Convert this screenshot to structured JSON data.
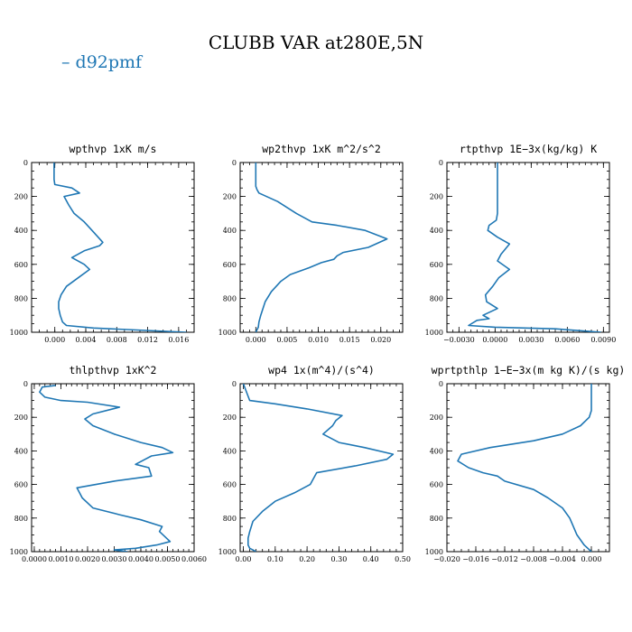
{
  "figure": {
    "title": "CLUBB VAR at280E,5N",
    "legend": [
      {
        "label": "– d92pmf",
        "color": "#1f77b4"
      }
    ],
    "line_color": "#1f77b4"
  },
  "chart_data": [
    {
      "type": "line",
      "title": "wpthvp  1xK m/s",
      "xlim": [
        -0.003,
        0.018
      ],
      "ylim": [
        1000,
        0
      ],
      "xticks": [
        0.0,
        0.004,
        0.008,
        0.012,
        0.016
      ],
      "xtick_labels": [
        "0.000",
        "0.004",
        "0.008",
        "0.012",
        "0.016"
      ],
      "xminor_step": 0.001,
      "yticks": [
        0,
        200,
        400,
        600,
        800,
        1000
      ],
      "ytick_labels": [
        "0",
        "200",
        "400",
        "600",
        "800",
        "1000"
      ],
      "series": [
        {
          "x": [
            -0.0001,
            -0.0001,
            -0.0001,
            0.0,
            0.0022,
            0.0032,
            0.0012,
            0.0018,
            0.0025,
            0.0038,
            0.0048,
            0.0062,
            0.0058,
            0.0038,
            0.0022,
            0.0038,
            0.0045,
            0.003,
            0.0015,
            0.0008,
            0.0005,
            0.0005,
            0.0007,
            0.001,
            0.0015,
            0.005,
            0.017
          ],
          "y": [
            0,
            50,
            100,
            130,
            150,
            180,
            200,
            250,
            300,
            350,
            400,
            470,
            490,
            520,
            560,
            600,
            630,
            680,
            730,
            780,
            820,
            860,
            900,
            940,
            960,
            975,
            1000
          ]
        }
      ]
    },
    {
      "type": "line",
      "title": "wp2thvp  1xK m^2/s^2",
      "xlim": [
        -0.0025,
        0.0235
      ],
      "ylim": [
        1000,
        0
      ],
      "xticks": [
        0.0,
        0.005,
        0.01,
        0.015,
        0.02
      ],
      "xtick_labels": [
        "0.000",
        "0.005",
        "0.010",
        "0.015",
        "0.020"
      ],
      "xminor_step": 0.001,
      "yticks": [
        0,
        200,
        400,
        600,
        800,
        1000
      ],
      "ytick_labels": [
        "0",
        "200",
        "400",
        "600",
        "800",
        "1000"
      ],
      "series": [
        {
          "x": [
            0.0,
            0.0,
            0.0,
            0.0,
            0.0002,
            0.0005,
            0.0035,
            0.0065,
            0.009,
            0.013,
            0.0175,
            0.021,
            0.018,
            0.014,
            0.013,
            0.0125,
            0.0105,
            0.0085,
            0.0055,
            0.004,
            0.0035,
            0.0025,
            0.0015,
            0.0008,
            0.0005,
            0.0004,
            0.0
          ],
          "y": [
            0,
            50,
            100,
            140,
            160,
            180,
            230,
            300,
            350,
            370,
            400,
            450,
            500,
            530,
            550,
            570,
            590,
            620,
            660,
            700,
            720,
            760,
            820,
            900,
            940,
            970,
            1000
          ]
        }
      ]
    },
    {
      "type": "line",
      "title": "rtpthvp  1E−3x(kg/kg) K",
      "xlim": [
        -0.004,
        0.0095
      ],
      "ylim": [
        1000,
        0
      ],
      "xticks": [
        -0.003,
        0.0,
        0.003,
        0.006,
        0.009
      ],
      "xtick_labels": [
        "−0.0030",
        "0.0000",
        "0.0030",
        "0.0060",
        "0.0090"
      ],
      "xminor_step": 0.0005,
      "yticks": [
        0,
        200,
        400,
        600,
        800,
        1000
      ],
      "ytick_labels": [
        "0",
        "200",
        "400",
        "600",
        "800",
        "1000"
      ],
      "series": [
        {
          "x": [
            0.0002,
            0.0002,
            0.0002,
            0.0002,
            0.0002,
            0.0001,
            -0.0005,
            -0.0006,
            0.0002,
            0.0012,
            0.0005,
            0.0002,
            0.0012,
            0.0003,
            -0.0002,
            -0.0008,
            -0.0007,
            0.0002,
            -0.001,
            -0.0005,
            -0.0015,
            -0.0022,
            0.0,
            0.005,
            0.0088
          ],
          "y": [
            0,
            100,
            200,
            250,
            300,
            340,
            370,
            400,
            440,
            480,
            540,
            580,
            630,
            680,
            730,
            780,
            820,
            860,
            900,
            920,
            930,
            960,
            970,
            980,
            1000
          ]
        }
      ]
    },
    {
      "type": "line",
      "title": "thlpthvp  1xK^2",
      "xlim": [
        -0.0001,
        0.006
      ],
      "ylim": [
        1000,
        0
      ],
      "xticks": [
        0.0,
        0.001,
        0.002,
        0.003,
        0.004,
        0.005,
        0.006
      ],
      "xtick_labels": [
        "0.0000",
        "0.0010",
        "0.0020",
        "0.0030",
        "0.0040",
        "0.0050",
        "0.0060"
      ],
      "xminor_step": 0.0002,
      "yticks": [
        0,
        200,
        400,
        600,
        800,
        1000
      ],
      "ytick_labels": [
        "0",
        "200",
        "400",
        "600",
        "800",
        "1000"
      ],
      "series": [
        {
          "x": [
            0.0008,
            0.0003,
            0.0002,
            0.0004,
            0.001,
            0.002,
            0.0032,
            0.0022,
            0.0019,
            0.0022,
            0.003,
            0.004,
            0.0048,
            0.0052,
            0.0044,
            0.0038,
            0.0043,
            0.0044,
            0.003,
            0.0016,
            0.0018,
            0.0022,
            0.0032,
            0.004,
            0.0048,
            0.0047,
            0.0051,
            0.0046,
            0.0038,
            0.003,
            0.0035
          ],
          "y": [
            10,
            20,
            50,
            80,
            100,
            110,
            140,
            180,
            210,
            250,
            300,
            350,
            380,
            410,
            430,
            480,
            500,
            550,
            580,
            620,
            680,
            740,
            780,
            810,
            850,
            880,
            940,
            960,
            980,
            990,
            1000
          ]
        }
      ]
    },
    {
      "type": "line",
      "title": "wp4  1x(m^4)/(s^4)",
      "xlim": [
        -0.01,
        0.5
      ],
      "ylim": [
        1000,
        0
      ],
      "xticks": [
        0.0,
        0.1,
        0.2,
        0.3,
        0.4,
        0.5
      ],
      "xtick_labels": [
        "0.00",
        "0.10",
        "0.20",
        "0.30",
        "0.40",
        "0.50"
      ],
      "xminor_step": 0.02,
      "yticks": [
        0,
        200,
        400,
        600,
        800,
        1000
      ],
      "ytick_labels": [
        "0",
        "200",
        "400",
        "600",
        "800",
        "1000"
      ],
      "series": [
        {
          "x": [
            0.0,
            0.02,
            0.1,
            0.2,
            0.31,
            0.29,
            0.28,
            0.25,
            0.3,
            0.38,
            0.47,
            0.45,
            0.35,
            0.23,
            0.21,
            0.16,
            0.1,
            0.06,
            0.03,
            0.02,
            0.015,
            0.015,
            0.02,
            0.03,
            0.04
          ],
          "y": [
            0,
            100,
            120,
            150,
            190,
            220,
            250,
            300,
            350,
            380,
            420,
            450,
            490,
            530,
            600,
            650,
            700,
            760,
            820,
            880,
            920,
            960,
            980,
            990,
            1000
          ]
        }
      ]
    },
    {
      "type": "line",
      "title": "wprtpthlp  1−E−3x(m kg K)/(s kg)",
      "xlim": [
        -0.02,
        0.0025
      ],
      "ylim": [
        1000,
        0
      ],
      "xticks": [
        -0.02,
        -0.016,
        -0.012,
        -0.008,
        -0.004,
        0.0
      ],
      "xtick_labels": [
        "−0.020",
        "−0.016",
        "−0.012",
        "−0.008",
        "−0.004",
        "0.000"
      ],
      "xminor_step": 0.001,
      "yticks": [
        0,
        200,
        400,
        600,
        800,
        1000
      ],
      "ytick_labels": [
        "0",
        "200",
        "400",
        "600",
        "800",
        "1000"
      ],
      "series": [
        {
          "x": [
            0.0,
            0.0,
            0.0,
            -0.0003,
            -0.0015,
            -0.004,
            -0.008,
            -0.014,
            -0.018,
            -0.0185,
            -0.017,
            -0.015,
            -0.013,
            -0.012,
            -0.008,
            -0.006,
            -0.004,
            -0.003,
            -0.0025,
            -0.002,
            -0.001,
            0.0
          ],
          "y": [
            0,
            100,
            160,
            200,
            250,
            300,
            340,
            380,
            420,
            460,
            500,
            530,
            550,
            580,
            630,
            680,
            740,
            800,
            850,
            900,
            960,
            1000
          ]
        }
      ]
    }
  ]
}
